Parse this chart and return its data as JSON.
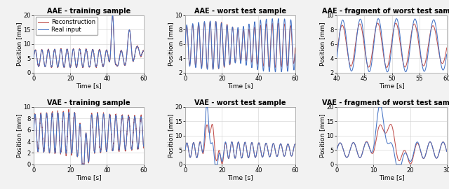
{
  "titles": [
    [
      "AAE - training sample",
      "AAE - worst test sample",
      "AAE - fragment of worst test sample"
    ],
    [
      "VAE - training sample",
      "VAE - worst test sample",
      "VAE - fragment of worst test sample"
    ]
  ],
  "xlabel": "Time [s]",
  "ylabel": "Position [mm]",
  "legend_labels": [
    "Real input",
    "Reconstruction"
  ],
  "colors": {
    "real": "#4472c4",
    "recon": "#c0504d"
  },
  "ylims": [
    [
      [
        0,
        20
      ],
      [
        2,
        10
      ],
      [
        2,
        10
      ]
    ],
    [
      [
        0,
        10
      ],
      [
        0,
        20
      ],
      [
        0,
        20
      ]
    ]
  ],
  "xlims": [
    [
      [
        0,
        60
      ],
      [
        0,
        60
      ],
      [
        40,
        60
      ]
    ],
    [
      [
        0,
        60
      ],
      [
        0,
        60
      ],
      [
        0,
        30
      ]
    ]
  ],
  "xticks": [
    [
      [
        0,
        20,
        40,
        60
      ],
      [
        0,
        20,
        40,
        60
      ],
      [
        40,
        45,
        50,
        55,
        60
      ]
    ],
    [
      [
        0,
        20,
        40,
        60
      ],
      [
        0,
        20,
        40,
        60
      ],
      [
        0,
        10,
        20,
        30
      ]
    ]
  ],
  "yticks": [
    [
      [
        0,
        5,
        10,
        15,
        20
      ],
      [
        2,
        4,
        6,
        8,
        10
      ],
      [
        2,
        4,
        6,
        8,
        10
      ]
    ],
    [
      [
        0,
        2,
        4,
        6,
        8,
        10
      ],
      [
        0,
        5,
        10,
        15,
        20
      ],
      [
        0,
        5,
        10,
        15,
        20
      ]
    ]
  ],
  "fig_bg": "#f2f2f2",
  "axes_bg": "#ffffff",
  "grid_color": "#d0d0d0",
  "title_fontsize": 7.0,
  "label_fontsize": 6.5,
  "tick_fontsize": 6.0,
  "legend_fontsize": 6.0,
  "line_width": 0.75
}
